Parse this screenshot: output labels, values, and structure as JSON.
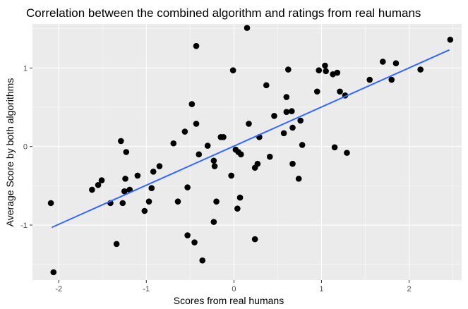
{
  "chart_data": {
    "type": "scatter",
    "title": "Correlation between the combined algorithm and ratings from real humans",
    "xlabel": "Scores from real humans",
    "ylabel": "Average Score by both algorithms",
    "xlim": [
      -2.3,
      2.6
    ],
    "ylim": [
      -1.7,
      1.56
    ],
    "xticks": [
      -2,
      -1,
      0,
      1,
      2
    ],
    "xtick_labels": [
      "-2",
      "-1",
      "0",
      "1",
      "2"
    ],
    "yticks": [
      -1,
      0,
      1
    ],
    "ytick_labels": [
      "-1",
      "0",
      "1"
    ],
    "grid": true,
    "background": "#ebebeb",
    "grid_major_color": "#ffffff",
    "point_color": "#000000",
    "trend_color": "#3366ff",
    "trend_line": {
      "x": [
        -2.08,
        2.46
      ],
      "y": [
        -1.03,
        1.23
      ]
    },
    "points": [
      {
        "x": -2.09,
        "y": -0.72
      },
      {
        "x": -2.06,
        "y": -1.6
      },
      {
        "x": -1.62,
        "y": -0.55
      },
      {
        "x": -1.55,
        "y": -0.49
      },
      {
        "x": -1.51,
        "y": -0.43
      },
      {
        "x": -1.41,
        "y": -0.72
      },
      {
        "x": -1.34,
        "y": -1.24
      },
      {
        "x": -1.29,
        "y": 0.07
      },
      {
        "x": -1.27,
        "y": -0.72
      },
      {
        "x": -1.25,
        "y": -0.57
      },
      {
        "x": -1.24,
        "y": -0.41
      },
      {
        "x": -1.23,
        "y": -0.07
      },
      {
        "x": -1.19,
        "y": -0.55
      },
      {
        "x": -1.1,
        "y": -0.37
      },
      {
        "x": -1.02,
        "y": -0.82
      },
      {
        "x": -0.97,
        "y": -0.7
      },
      {
        "x": -0.94,
        "y": -0.53
      },
      {
        "x": -0.92,
        "y": -0.32
      },
      {
        "x": -0.85,
        "y": -0.25
      },
      {
        "x": -0.69,
        "y": 0.04
      },
      {
        "x": -0.64,
        "y": -0.7
      },
      {
        "x": -0.56,
        "y": 0.19
      },
      {
        "x": -0.53,
        "y": -1.13
      },
      {
        "x": -0.53,
        "y": -0.52
      },
      {
        "x": -0.48,
        "y": 0.54
      },
      {
        "x": -0.45,
        "y": -1.22
      },
      {
        "x": -0.43,
        "y": 0.29
      },
      {
        "x": -0.43,
        "y": 1.28
      },
      {
        "x": -0.4,
        "y": -0.1
      },
      {
        "x": -0.36,
        "y": -1.45
      },
      {
        "x": -0.3,
        "y": 0.01
      },
      {
        "x": -0.23,
        "y": -0.96
      },
      {
        "x": -0.23,
        "y": -0.18
      },
      {
        "x": -0.22,
        "y": -0.25
      },
      {
        "x": -0.2,
        "y": -0.7
      },
      {
        "x": -0.15,
        "y": 0.12
      },
      {
        "x": -0.12,
        "y": 0.12
      },
      {
        "x": -0.03,
        "y": -0.37
      },
      {
        "x": -0.01,
        "y": 0.97
      },
      {
        "x": 0.02,
        "y": -0.04
      },
      {
        "x": 0.04,
        "y": -0.79
      },
      {
        "x": 0.05,
        "y": -0.07
      },
      {
        "x": 0.07,
        "y": -0.65
      },
      {
        "x": 0.08,
        "y": -0.1
      },
      {
        "x": 0.15,
        "y": 1.51
      },
      {
        "x": 0.17,
        "y": 0.29
      },
      {
        "x": 0.24,
        "y": -1.18
      },
      {
        "x": 0.24,
        "y": -0.27
      },
      {
        "x": 0.27,
        "y": -0.22
      },
      {
        "x": 0.29,
        "y": 0.12
      },
      {
        "x": 0.37,
        "y": 0.78
      },
      {
        "x": 0.41,
        "y": -0.13
      },
      {
        "x": 0.46,
        "y": 0.39
      },
      {
        "x": 0.57,
        "y": 0.17
      },
      {
        "x": 0.6,
        "y": 0.63
      },
      {
        "x": 0.6,
        "y": 0.44
      },
      {
        "x": 0.62,
        "y": 0.98
      },
      {
        "x": 0.66,
        "y": 0.45
      },
      {
        "x": 0.67,
        "y": 0.24
      },
      {
        "x": 0.67,
        "y": -0.22
      },
      {
        "x": 0.74,
        "y": -0.41
      },
      {
        "x": 0.76,
        "y": 0.33
      },
      {
        "x": 0.78,
        "y": 0.02
      },
      {
        "x": 0.95,
        "y": 0.7
      },
      {
        "x": 0.97,
        "y": 0.97
      },
      {
        "x": 1.04,
        "y": 1.03
      },
      {
        "x": 1.05,
        "y": 0.96
      },
      {
        "x": 1.13,
        "y": 0.92
      },
      {
        "x": 1.15,
        "y": -0.01
      },
      {
        "x": 1.18,
        "y": 0.94
      },
      {
        "x": 1.21,
        "y": 0.7
      },
      {
        "x": 1.27,
        "y": 0.65
      },
      {
        "x": 1.29,
        "y": -0.08
      },
      {
        "x": 1.55,
        "y": 0.85
      },
      {
        "x": 1.7,
        "y": 1.08
      },
      {
        "x": 1.8,
        "y": 0.85
      },
      {
        "x": 1.85,
        "y": 1.06
      },
      {
        "x": 2.13,
        "y": 0.98
      },
      {
        "x": 2.47,
        "y": 1.36
      }
    ]
  }
}
